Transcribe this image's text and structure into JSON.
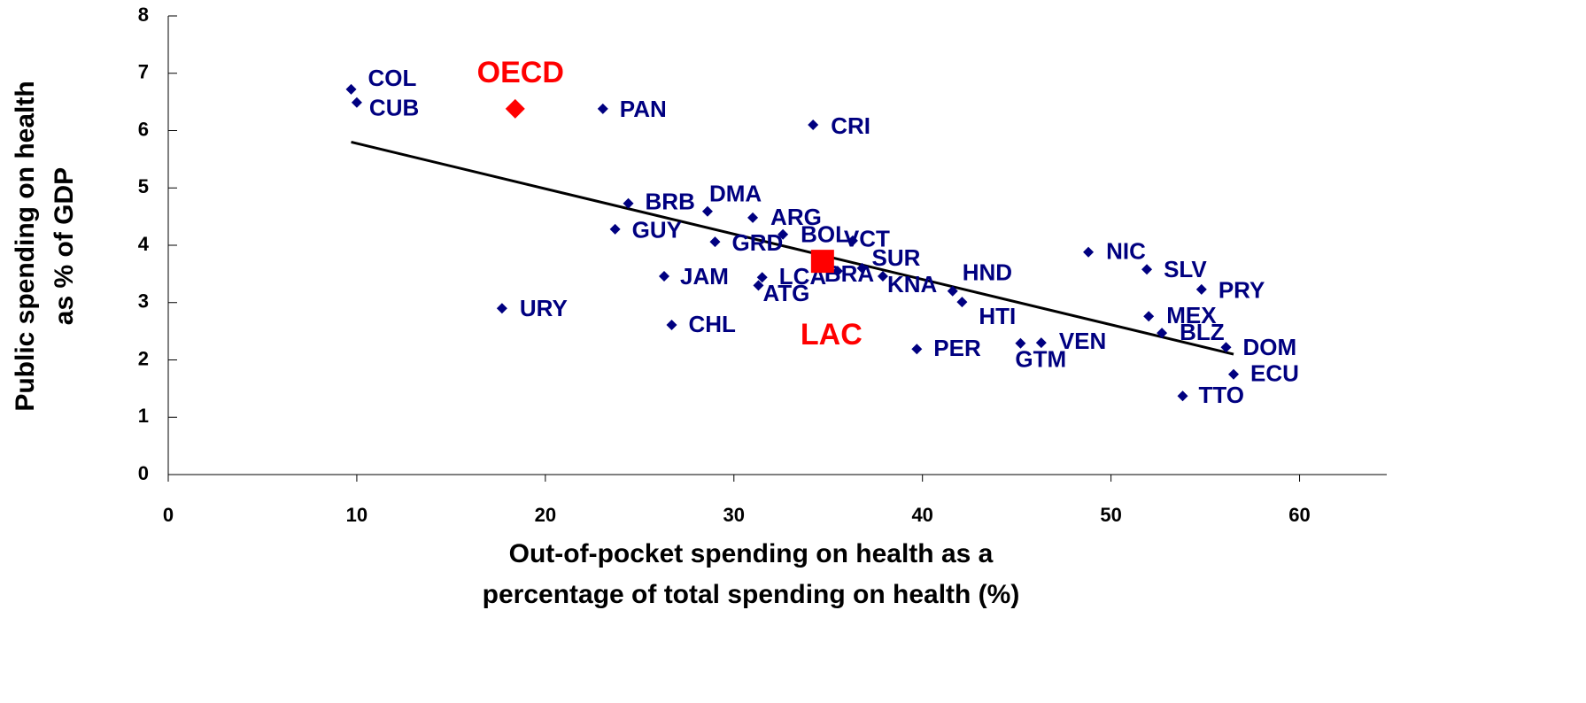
{
  "chart_data": {
    "type": "scatter",
    "xlabel": [
      "Out-of-pocket spending on health as a",
      "percentage of total spending on health (%)"
    ],
    "ylabel": [
      "Public spending on health",
      "as % of GDP"
    ],
    "xlim": [
      0,
      65
    ],
    "xticks": [
      0,
      10,
      20,
      30,
      40,
      50,
      60
    ],
    "ylim": [
      0,
      8
    ],
    "yticks": [
      0,
      1,
      2,
      3,
      4,
      5,
      6,
      7,
      8
    ],
    "series": [
      {
        "color": "#000080",
        "marker": "diamond",
        "labels": [
          "COL",
          "CUB",
          "PAN",
          "CRI",
          "BRB",
          "DMA",
          "ARG",
          "GUY",
          "GRD",
          "BOL",
          "VCT",
          "SUR",
          "BRA",
          "KNA",
          "LCA",
          "ATG",
          "JAM",
          "URY",
          "CHL",
          "HND",
          "HTI",
          "NIC",
          "SLV",
          "PRY",
          "MEX",
          "BLZ",
          "DOM",
          "ECU",
          "TTO",
          "PER",
          "GTM",
          "VEN"
        ],
        "x": [
          9.7,
          10.0,
          23.05,
          34.2,
          24.4,
          28.6,
          31.0,
          23.7,
          29.0,
          32.6,
          36.3,
          36.8,
          35.5,
          37.9,
          31.5,
          31.3,
          26.3,
          17.7,
          26.7,
          41.6,
          42.1,
          48.8,
          51.9,
          54.8,
          52.0,
          52.7,
          56.1,
          56.5,
          53.8,
          39.7,
          45.2,
          46.3
        ],
        "y": [
          6.72,
          6.49,
          6.38,
          6.1,
          4.73,
          4.59,
          4.48,
          4.28,
          4.06,
          4.19,
          4.08,
          3.6,
          3.55,
          3.46,
          3.44,
          3.3,
          3.46,
          2.9,
          2.61,
          3.2,
          3.01,
          3.88,
          3.58,
          3.23,
          2.76,
          2.47,
          2.22,
          1.75,
          1.37,
          2.19,
          2.29,
          2.3
        ]
      },
      {
        "name": "OECD",
        "color": "#ff0000",
        "marker": "diamond",
        "x": [
          18.4
        ],
        "y": [
          6.38
        ]
      },
      {
        "name": "LAC",
        "color": "#ff0000",
        "marker": "square",
        "x": [
          34.7
        ],
        "y": [
          3.72
        ]
      }
    ],
    "trendline": {
      "color": "#000000",
      "x": [
        9.7,
        56.5
      ],
      "y": [
        5.8,
        2.1
      ]
    }
  }
}
